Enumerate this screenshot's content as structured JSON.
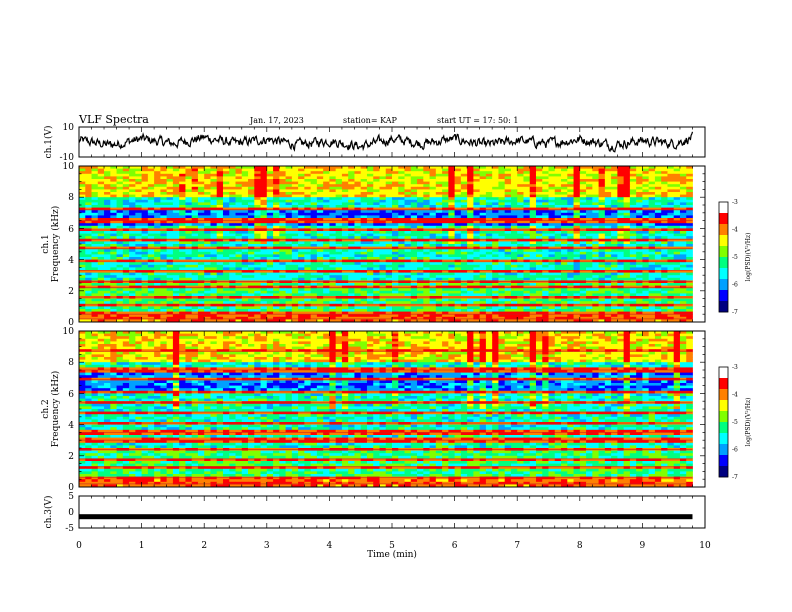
{
  "header": {
    "title": "VLF Spectra",
    "date": "Jan. 17, 2023",
    "station": "station= KAP",
    "start": "start  UT =   17: 50: 1"
  },
  "colors": {
    "colormap": [
      "#000080",
      "#0000ff",
      "#00a0ff",
      "#00ffff",
      "#00ff80",
      "#80ff00",
      "#ffff00",
      "#ff8000",
      "#ff0000",
      "#ffffff"
    ],
    "trace": "#000000"
  },
  "chart_data": [
    {
      "type": "line",
      "id": "ch1",
      "ylabel": "ch.1(V)",
      "ylim": [
        -10,
        10
      ],
      "yticks": [
        "10",
        "-10"
      ],
      "xlim": [
        0,
        10
      ],
      "description_values": "noisy waveform oscillating roughly between -5 and 5 V over 0–9.8 min",
      "sample_x_min": [
        0,
        0.5,
        1,
        1.5,
        2,
        2.5,
        3,
        3.5,
        4,
        4.5,
        5,
        5.5,
        6,
        6.5,
        7,
        7.5,
        8,
        8.5,
        9,
        9.5,
        9.8
      ],
      "sample_y_V": [
        1,
        -2,
        2,
        -1,
        3,
        -1,
        2,
        -2,
        1,
        -3,
        2,
        -1,
        2,
        -2,
        1,
        -1,
        2,
        -2,
        1,
        -1,
        3
      ]
    },
    {
      "type": "heatmap",
      "id": "ch2spec",
      "ylabel": "ch.1\nFrequency (kHz)",
      "ylim": [
        0,
        10
      ],
      "yticks": [
        "0",
        "2",
        "4",
        "6",
        "8",
        "10"
      ],
      "xlim": [
        0,
        10
      ],
      "data_end_min": 9.8,
      "colorbar": {
        "label": "log(PSD)(V²/Hz)",
        "range": [
          -7,
          -3
        ],
        "ticks": [
          "-3",
          "-4",
          "-5",
          "-6",
          "-7"
        ]
      },
      "bands_kHz": [
        0.2,
        0.5,
        1.1,
        1.6,
        2.2,
        2.6,
        3.3,
        3.9,
        4.7,
        5.3,
        5.9,
        6.5,
        7.2
      ]
    },
    {
      "type": "heatmap",
      "id": "ch3spec",
      "ylabel": "ch.2\nFrequency (kHz)",
      "ylim": [
        0,
        10
      ],
      "yticks": [
        "0",
        "2",
        "4",
        "6",
        "8",
        "10"
      ],
      "xlim": [
        0,
        10
      ],
      "data_end_min": 9.8,
      "colorbar": {
        "label": "log(PSD)(V²/Hz)",
        "range": [
          -7,
          -3
        ],
        "ticks": [
          "-3",
          "-4",
          "-5",
          "-6",
          "-7"
        ]
      },
      "bands_kHz": [
        0.2,
        0.6,
        1.3,
        1.8,
        2.4,
        3.0,
        3.5,
        4.1,
        4.8,
        5.4,
        6.1,
        6.9,
        7.5,
        8.7
      ]
    },
    {
      "type": "line",
      "id": "ch3",
      "ylabel": "ch.3(V)",
      "ylim": [
        -5,
        5
      ],
      "yticks": [
        "5",
        "0",
        "-5"
      ],
      "xlim": [
        0,
        10
      ],
      "xlabel": "Time (min)",
      "xticks": [
        "0",
        "1",
        "2",
        "3",
        "4",
        "5",
        "6",
        "7",
        "8",
        "9",
        "10"
      ],
      "level_V": -1,
      "data_end_min": 9.8
    }
  ]
}
